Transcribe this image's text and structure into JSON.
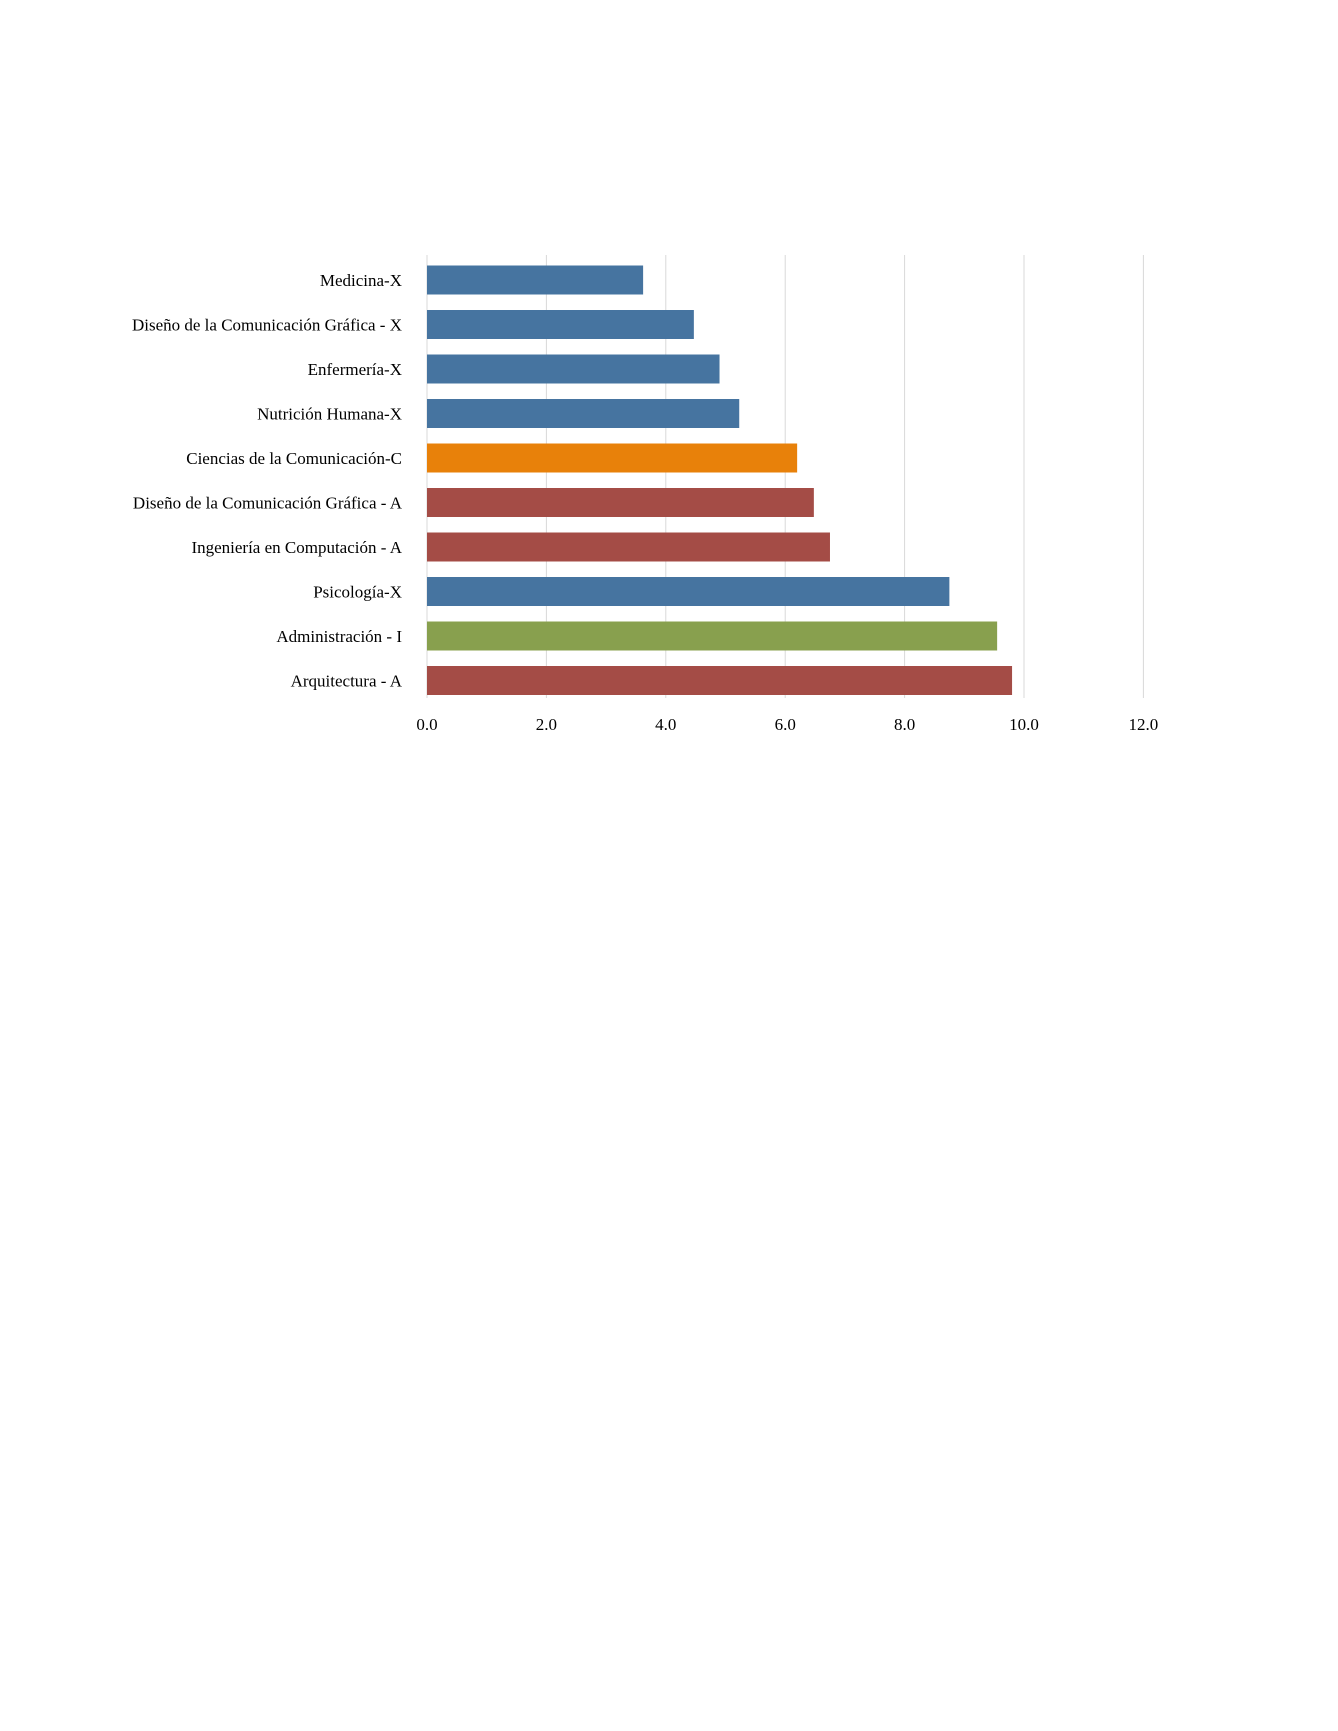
{
  "chart_data": {
    "type": "bar",
    "orientation": "horizontal",
    "title": "",
    "xlabel": "",
    "ylabel": "",
    "xlim": [
      0,
      12
    ],
    "x_ticks": [
      "0.0",
      "2.0",
      "4.0",
      "6.0",
      "8.0",
      "10.0",
      "12.0"
    ],
    "x_tick_values": [
      0,
      2,
      4,
      6,
      8,
      10,
      12
    ],
    "grid": "vertical",
    "legend": "none",
    "categories": [
      "Medicina-X",
      "Diseño de la Comunicación Gráfica - X",
      "Enfermería-X",
      "Nutrición Humana-X",
      "Ciencias de la Comunicación-C",
      "Diseño de la Comunicación Gráfica - A",
      "Ingeniería en Computación - A",
      "Psicología-X",
      "Administración - I",
      "Arquitectura - A"
    ],
    "values": [
      3.62,
      4.47,
      4.9,
      5.23,
      6.2,
      6.48,
      6.75,
      8.75,
      9.55,
      9.8
    ],
    "colors": [
      "#4674A0",
      "#4674A0",
      "#4674A0",
      "#4674A0",
      "#E8810A",
      "#A44C46",
      "#A44C46",
      "#4674A0",
      "#88A04E",
      "#A44C46"
    ],
    "gridline_color": "#D9D9D9"
  }
}
